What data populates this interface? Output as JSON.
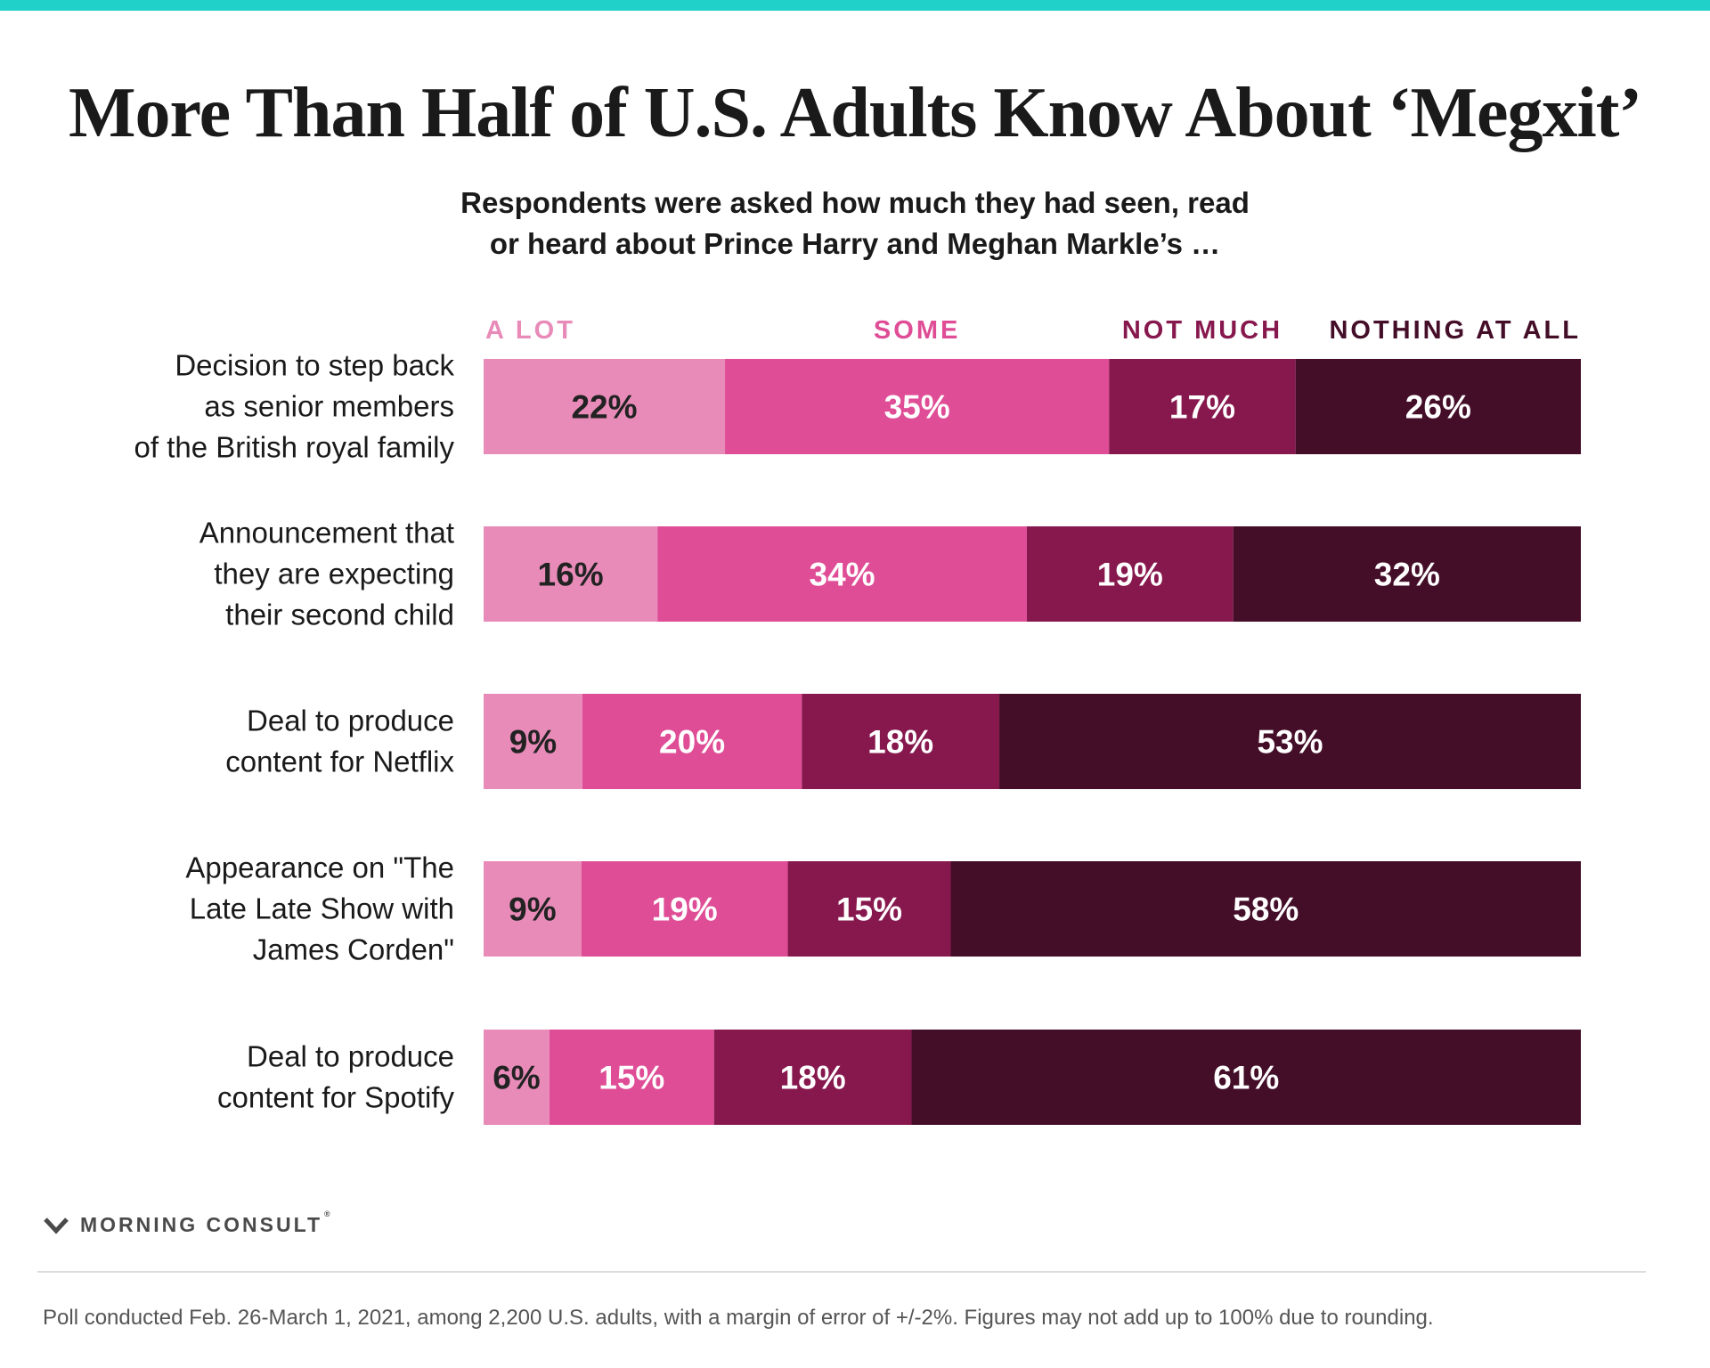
{
  "colors": {
    "stripe": "#1fd1c8",
    "series": [
      "#e88bb8",
      "#df4d96",
      "#87184e",
      "#440e28"
    ],
    "dark_text": "#222222",
    "light_text": "#ffffff",
    "category_text": "#1a1a1a"
  },
  "title": "More Than Half of U.S. Adults Know About ‘Megxit’",
  "subtitle": {
    "line1": "Respondents were asked how much they had seen, read",
    "line2": "or heard about Prince Harry and Meghan Markle’s …"
  },
  "chart_data": {
    "type": "bar",
    "orientation": "horizontal",
    "stacked": true,
    "categories": [
      [
        "Decision to step back",
        "as senior members",
        "of the British royal family"
      ],
      [
        "Announcement that",
        "they are expecting",
        "their second child"
      ],
      [
        "Deal to produce",
        "content for Netflix"
      ],
      [
        "Appearance on \"The",
        "Late Late Show with",
        "James Corden\""
      ],
      [
        "Deal to produce",
        "content for Spotify"
      ]
    ],
    "series": [
      {
        "name": "A LOT",
        "values": [
          22,
          16,
          9,
          9,
          6
        ]
      },
      {
        "name": "SOME",
        "values": [
          35,
          34,
          20,
          19,
          15
        ]
      },
      {
        "name": "NOT MUCH",
        "values": [
          17,
          19,
          18,
          15,
          18
        ]
      },
      {
        "name": "NOTHING AT ALL",
        "values": [
          26,
          32,
          53,
          58,
          61
        ]
      }
    ],
    "value_suffix": "%",
    "legend_position": "top"
  },
  "footer": {
    "brand": "MORNING CONSULT",
    "trademark": "®",
    "note": "Poll conducted Feb. 26-March 1, 2021, among 2,200 U.S. adults, with a margin of error of +/-2%. Figures may not add up to 100% due to rounding."
  }
}
